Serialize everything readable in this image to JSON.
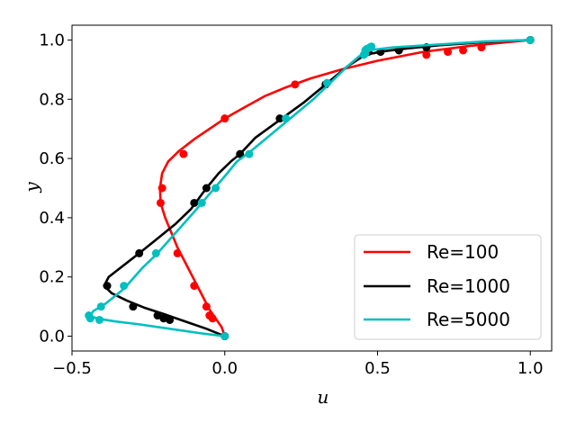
{
  "chart_data": {
    "type": "line",
    "title": "",
    "xlabel": "u",
    "ylabel": "y",
    "xlim": [
      -0.5,
      1.07
    ],
    "ylim": [
      -0.05,
      1.05
    ],
    "xticks": [
      -0.5,
      0.0,
      0.5,
      1.0
    ],
    "xtick_labels": [
      "−0.5",
      "0.0",
      "0.5",
      "1.0"
    ],
    "yticks": [
      0.0,
      0.2,
      0.4,
      0.6,
      0.8,
      1.0
    ],
    "ytick_labels": [
      "0.0",
      "0.2",
      "0.4",
      "0.6",
      "0.8",
      "1.0"
    ],
    "grid": false,
    "legend_position": "lower-right",
    "series": [
      {
        "name": "Re=100",
        "color": "#ff0000",
        "curve": [
          [
            0.0,
            0.0
          ],
          [
            -0.01,
            0.03
          ],
          [
            -0.03,
            0.06
          ],
          [
            -0.05,
            0.09
          ],
          [
            -0.07,
            0.13
          ],
          [
            -0.09,
            0.17
          ],
          [
            -0.11,
            0.21
          ],
          [
            -0.13,
            0.25
          ],
          [
            -0.155,
            0.3
          ],
          [
            -0.175,
            0.35
          ],
          [
            -0.195,
            0.4
          ],
          [
            -0.21,
            0.45
          ],
          [
            -0.212,
            0.5
          ],
          [
            -0.205,
            0.55
          ],
          [
            -0.185,
            0.59
          ],
          [
            -0.15,
            0.625
          ],
          [
            -0.1,
            0.665
          ],
          [
            -0.05,
            0.7
          ],
          [
            0.0,
            0.735
          ],
          [
            0.06,
            0.77
          ],
          [
            0.13,
            0.81
          ],
          [
            0.2,
            0.84
          ],
          [
            0.28,
            0.87
          ],
          [
            0.38,
            0.9
          ],
          [
            0.5,
            0.93
          ],
          [
            0.65,
            0.96
          ],
          [
            0.8,
            0.98
          ],
          [
            0.9,
            0.99
          ],
          [
            1.0,
            1.0
          ]
        ],
        "points": [
          [
            0.0,
            0.0
          ],
          [
            -0.04,
            0.06
          ],
          [
            -0.05,
            0.07
          ],
          [
            -0.06,
            0.1
          ],
          [
            -0.1,
            0.17
          ],
          [
            -0.155,
            0.28
          ],
          [
            -0.21,
            0.45
          ],
          [
            -0.205,
            0.5
          ],
          [
            -0.135,
            0.615
          ],
          [
            0.0,
            0.735
          ],
          [
            0.23,
            0.85
          ],
          [
            0.66,
            0.95
          ],
          [
            0.73,
            0.96
          ],
          [
            0.78,
            0.965
          ],
          [
            0.84,
            0.975
          ],
          [
            1.0,
            1.0
          ]
        ]
      },
      {
        "name": "Re=1000",
        "color": "#000000",
        "curve": [
          [
            0.0,
            0.0
          ],
          [
            -0.06,
            0.025
          ],
          [
            -0.13,
            0.05
          ],
          [
            -0.2,
            0.075
          ],
          [
            -0.26,
            0.095
          ],
          [
            -0.32,
            0.12
          ],
          [
            -0.37,
            0.145
          ],
          [
            -0.395,
            0.17
          ],
          [
            -0.38,
            0.2
          ],
          [
            -0.33,
            0.24
          ],
          [
            -0.28,
            0.28
          ],
          [
            -0.22,
            0.33
          ],
          [
            -0.16,
            0.38
          ],
          [
            -0.11,
            0.43
          ],
          [
            -0.06,
            0.5
          ],
          [
            -0.02,
            0.55
          ],
          [
            0.02,
            0.59
          ],
          [
            0.05,
            0.615
          ],
          [
            0.1,
            0.67
          ],
          [
            0.18,
            0.73
          ],
          [
            0.26,
            0.79
          ],
          [
            0.33,
            0.85
          ],
          [
            0.4,
            0.91
          ],
          [
            0.46,
            0.95
          ],
          [
            0.52,
            0.962
          ],
          [
            0.6,
            0.972
          ],
          [
            0.7,
            0.982
          ],
          [
            0.85,
            0.993
          ],
          [
            1.0,
            1.0
          ]
        ],
        "points": [
          [
            0.0,
            0.0
          ],
          [
            -0.18,
            0.055
          ],
          [
            -0.2,
            0.06
          ],
          [
            -0.22,
            0.07
          ],
          [
            -0.3,
            0.1
          ],
          [
            -0.385,
            0.17
          ],
          [
            -0.28,
            0.28
          ],
          [
            -0.1,
            0.45
          ],
          [
            -0.06,
            0.5
          ],
          [
            0.05,
            0.615
          ],
          [
            0.18,
            0.735
          ],
          [
            0.33,
            0.85
          ],
          [
            0.47,
            0.96
          ],
          [
            0.51,
            0.96
          ],
          [
            0.57,
            0.965
          ],
          [
            0.66,
            0.975
          ],
          [
            1.0,
            1.0
          ]
        ]
      },
      {
        "name": "Re=5000",
        "color": "#00bfbf",
        "curve": [
          [
            0.0,
            0.0
          ],
          [
            -0.08,
            0.01
          ],
          [
            -0.18,
            0.025
          ],
          [
            -0.28,
            0.04
          ],
          [
            -0.36,
            0.05
          ],
          [
            -0.42,
            0.06
          ],
          [
            -0.44,
            0.07
          ],
          [
            -0.43,
            0.085
          ],
          [
            -0.39,
            0.11
          ],
          [
            -0.33,
            0.16
          ],
          [
            -0.27,
            0.23
          ],
          [
            -0.22,
            0.28
          ],
          [
            -0.16,
            0.35
          ],
          [
            -0.1,
            0.42
          ],
          [
            -0.05,
            0.48
          ],
          [
            0.0,
            0.54
          ],
          [
            0.04,
            0.59
          ],
          [
            0.08,
            0.62
          ],
          [
            0.15,
            0.68
          ],
          [
            0.22,
            0.74
          ],
          [
            0.29,
            0.8
          ],
          [
            0.34,
            0.85
          ],
          [
            0.4,
            0.91
          ],
          [
            0.44,
            0.945
          ],
          [
            0.47,
            0.965
          ],
          [
            0.55,
            0.975
          ],
          [
            0.7,
            0.985
          ],
          [
            0.85,
            0.995
          ],
          [
            1.0,
            1.0
          ]
        ],
        "points": [
          [
            0.0,
            0.0
          ],
          [
            -0.41,
            0.055
          ],
          [
            -0.44,
            0.06
          ],
          [
            -0.445,
            0.07
          ],
          [
            -0.405,
            0.1
          ],
          [
            -0.33,
            0.17
          ],
          [
            -0.225,
            0.28
          ],
          [
            -0.075,
            0.45
          ],
          [
            -0.03,
            0.5
          ],
          [
            0.08,
            0.615
          ],
          [
            0.2,
            0.735
          ],
          [
            0.335,
            0.855
          ],
          [
            0.455,
            0.95
          ],
          [
            0.46,
            0.955
          ],
          [
            0.46,
            0.965
          ],
          [
            0.465,
            0.97
          ],
          [
            0.475,
            0.975
          ],
          [
            0.48,
            0.978
          ],
          [
            1.0,
            1.0
          ]
        ]
      }
    ]
  }
}
